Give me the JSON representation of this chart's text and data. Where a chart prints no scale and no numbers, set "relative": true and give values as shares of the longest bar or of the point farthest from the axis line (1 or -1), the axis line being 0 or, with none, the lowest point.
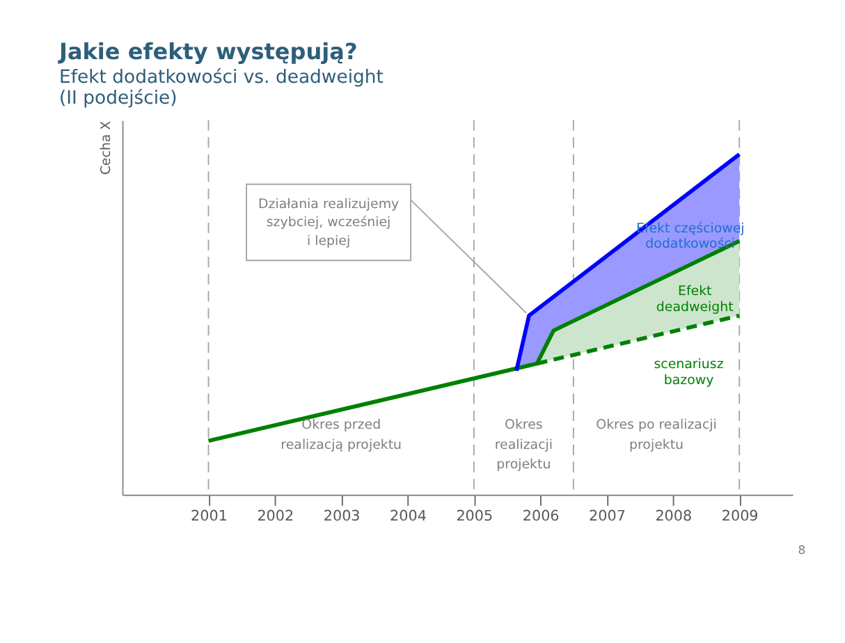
{
  "chart_data": {
    "type": "line",
    "title": "Jakie efekty występują?",
    "subtitle": "Efekt dodatkowości vs. deadweight\n(II podejście)",
    "ylabel": "Cecha X",
    "relative": true,
    "xlim": [
      1999.7,
      2009.8
    ],
    "xticks": [
      2001,
      2002,
      2003,
      2004,
      2005,
      2006,
      2007,
      2008,
      2009
    ],
    "grid": false,
    "marker": "none",
    "series": [
      {
        "name": "Efekt\ndeadweight",
        "color": "#008000",
        "line_style": "solid",
        "x": [
          2001,
          2005.95,
          2006.2,
          2009
        ],
        "values": [
          0.158,
          0.385,
          0.482,
          0.745
        ],
        "lower": [
          null,
          0.385,
          0.397,
          0.526
        ],
        "upper": [
          null,
          0.385,
          0.482,
          0.745
        ]
      },
      {
        "name": "scenariusz\nbazowy",
        "color": "#008000",
        "line_style": "dashed",
        "x": [
          2005.95,
          2009
        ],
        "values": [
          0.385,
          0.526
        ]
      },
      {
        "name": "Efekt częściowej\ndodatkowości",
        "color": "#0000ff",
        "line_style": "solid",
        "x": [
          2005.64,
          2005.83,
          2005.95,
          2006.2,
          2009
        ],
        "values": [
          0.364,
          0.526,
          0.544,
          0.581,
          1.0
        ],
        "lower": [
          0.364,
          0.376,
          0.385,
          0.482,
          0.745
        ],
        "upper": [
          0.364,
          0.526,
          0.544,
          0.581,
          1.0
        ]
      }
    ],
    "ref_lines": [
      {
        "axis": "x",
        "value": 2001,
        "color": "#a6a6a6",
        "line_style": "dashed"
      },
      {
        "axis": "x",
        "value": 2005,
        "color": "#a6a6a6",
        "line_style": "dashed"
      },
      {
        "axis": "x",
        "value": 2006.5,
        "color": "#a6a6a6",
        "line_style": "dashed"
      },
      {
        "axis": "x",
        "value": 2009,
        "color": "#a6a6a6",
        "line_style": "dashed"
      }
    ],
    "annotations": [
      {
        "text": "Działania realizujemy\nszybciej, wcześniej\ni lepiej",
        "x": 2005.83,
        "y": 0.526
      },
      "Okres przed\nrealizacją projektu",
      "Okres\nrealizacji\nprojektu",
      "Okres po realizacji\nprojektu",
      "8"
    ]
  }
}
